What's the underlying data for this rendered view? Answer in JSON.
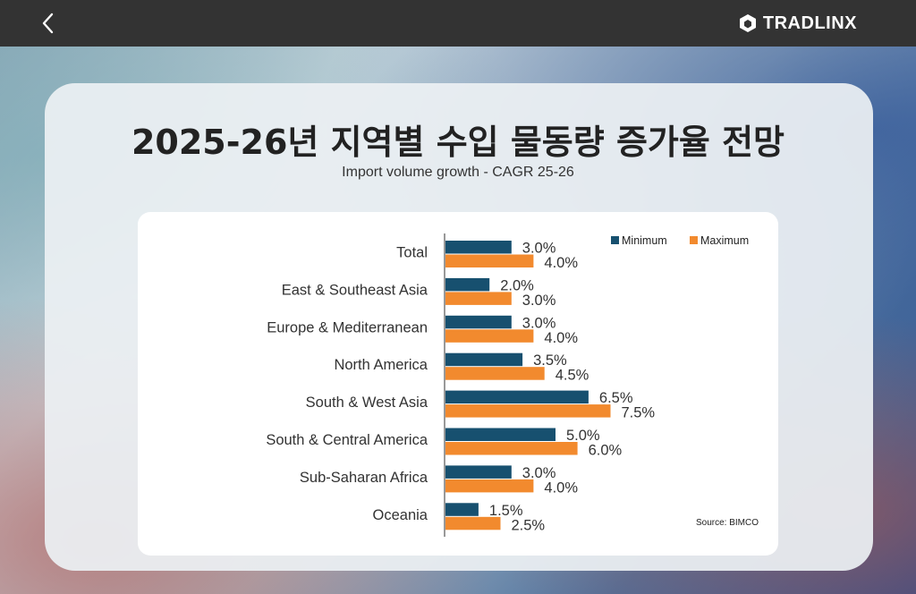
{
  "topbar": {
    "back_icon": "chevron-left-icon",
    "logo_icon": "cube-icon",
    "logo_text": "TRADLINX"
  },
  "header": {
    "title": "2025-26년 지역별 수입 물동량 증가율 전망",
    "subtitle": "Import volume growth - CAGR 25-26"
  },
  "colors": {
    "minimum": "#17506f",
    "maximum": "#f28a2e"
  },
  "chart_data": {
    "type": "bar",
    "orientation": "horizontal",
    "categories": [
      "Total",
      "East & Southeast Asia",
      "Europe & Mediterranean",
      "North America",
      "South & West Asia",
      "South & Central America",
      "Sub-Saharan Africa",
      "Oceania"
    ],
    "series": [
      {
        "name": "Minimum",
        "color": "#17506f",
        "values": [
          3.0,
          2.0,
          3.0,
          3.5,
          6.5,
          5.0,
          3.0,
          1.5
        ]
      },
      {
        "name": "Maximum",
        "color": "#f28a2e",
        "values": [
          4.0,
          3.0,
          4.0,
          4.5,
          7.5,
          6.0,
          4.0,
          2.5
        ]
      }
    ],
    "data_labels": {
      "Minimum": [
        "3.0%",
        "2.0%",
        "3.0%",
        "3.5%",
        "6.5%",
        "5.0%",
        "3.0%",
        "1.5%"
      ],
      "Maximum": [
        "4.0%",
        "3.0%",
        "4.0%",
        "4.5%",
        "7.5%",
        "6.0%",
        "4.0%",
        "2.5%"
      ]
    },
    "legend_position": "top-right",
    "source": "Source: BIMCO",
    "grid": false
  }
}
